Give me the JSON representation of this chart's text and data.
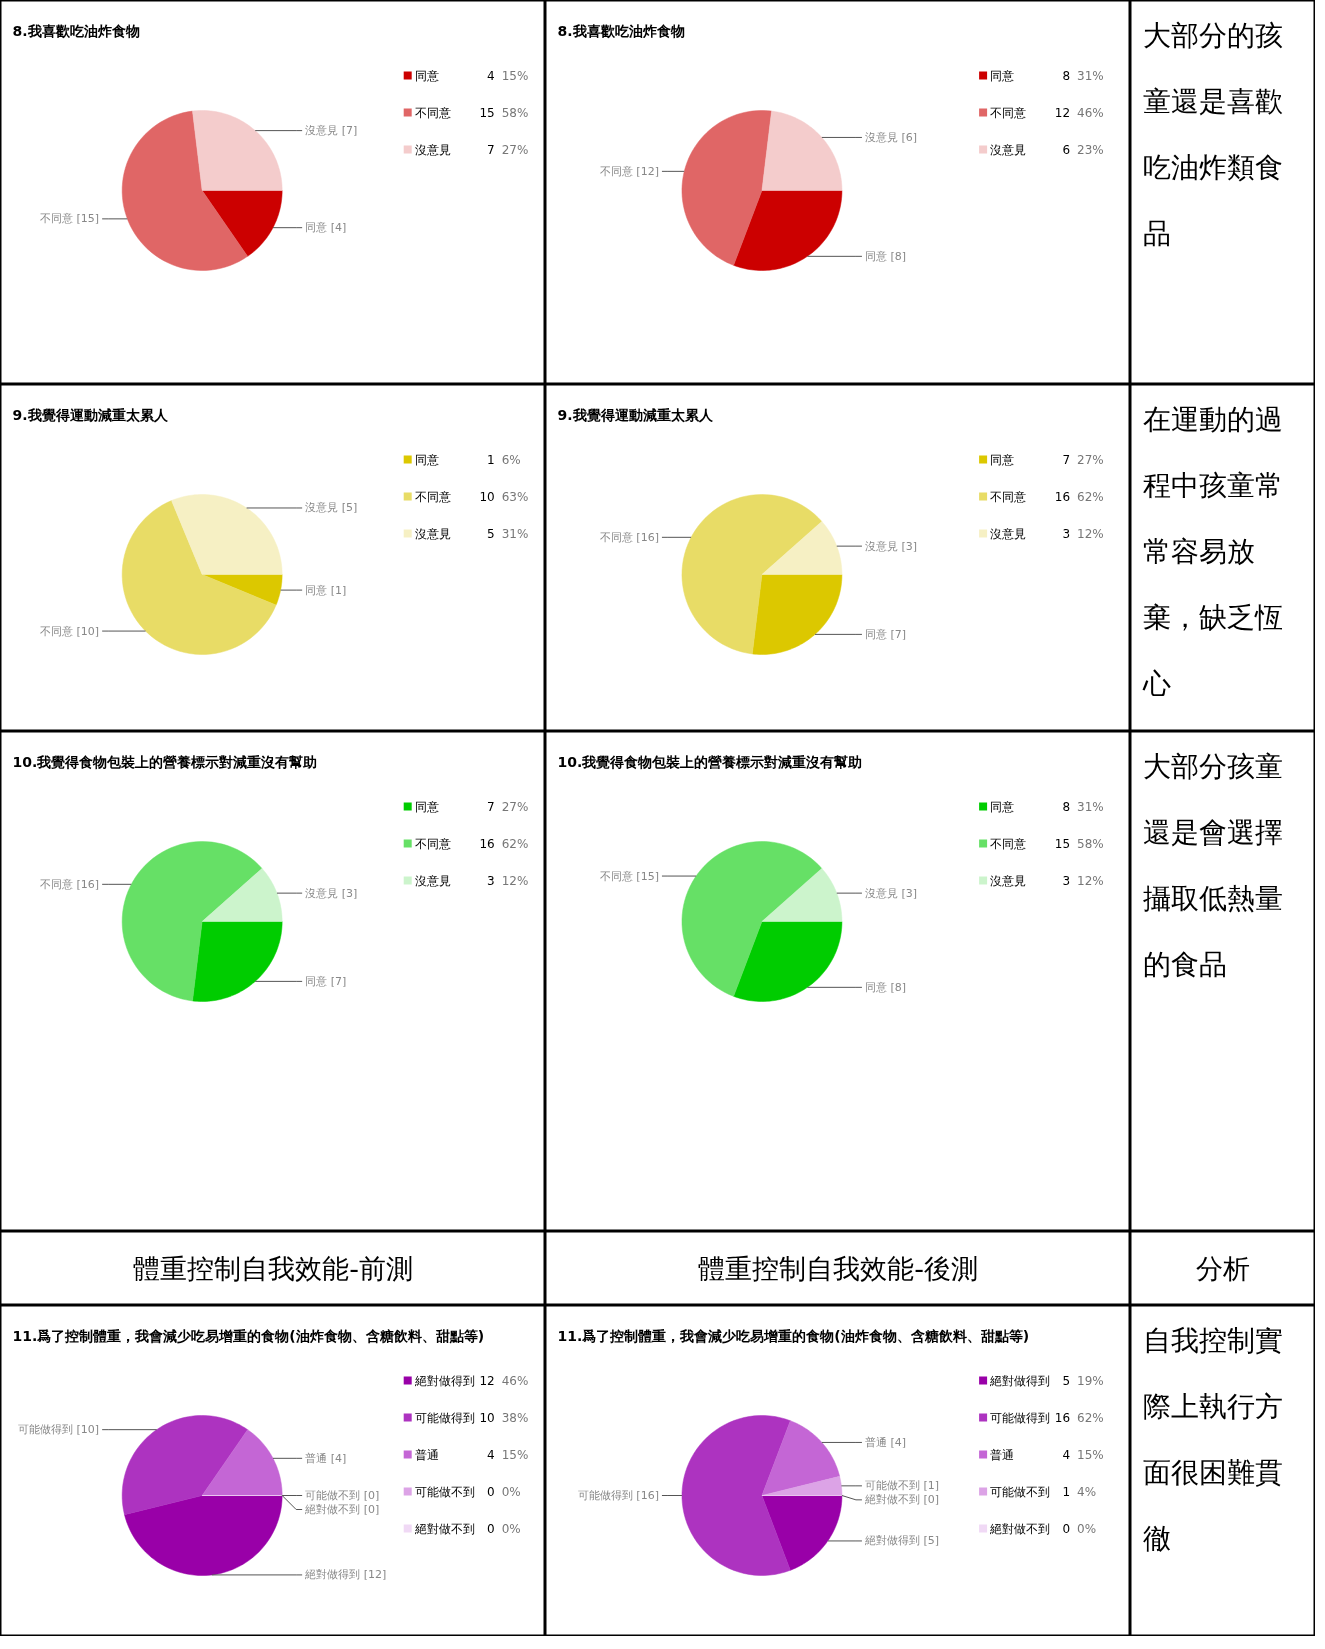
{
  "chart_data": [
    {
      "type": "pie",
      "title": "8.我喜歡吃油炸食物",
      "categories": [
        "同意",
        "不同意",
        "沒意見"
      ],
      "values": [
        4,
        15,
        7
      ],
      "colors": [
        "#cc0000",
        "#e06666",
        "#f4cccc"
      ],
      "value_labels": [
        "同意 [4]",
        "不同意 [15]",
        "沒意見 [7]"
      ],
      "annotations": [
        "4",
        "15%",
        "15",
        "58%",
        "7",
        "27%"
      ],
      "legend": "right"
    },
    {
      "type": "pie",
      "title": "8.我喜歡吃油炸食物",
      "categories": [
        "同意",
        "不同意",
        "沒意見"
      ],
      "values": [
        8,
        12,
        6
      ],
      "colors": [
        "#cc0000",
        "#e06666",
        "#f4cccc"
      ],
      "value_labels": [
        "同意 [8]",
        "不同意 [12]",
        "沒意見 [6]"
      ],
      "annotations": [
        "8",
        "31%",
        "12",
        "46%",
        "6",
        "23%"
      ],
      "legend": "right"
    },
    {
      "type": "other",
      "title": "大部分的孩童還是喜歡吃油炸類食品"
    },
    {
      "type": "pie",
      "title": "9.我覺得運動減重太累人",
      "categories": [
        "同意",
        "不同意",
        "沒意見"
      ],
      "values": [
        1,
        10,
        5
      ],
      "colors": [
        "#dcc800",
        "#e8dc66",
        "#f6f0c4"
      ],
      "value_labels": [
        "同意 [1]",
        "不同意 [10]",
        "沒意見 [5]"
      ],
      "annotations": [
        "1",
        "6%",
        "10",
        "63%",
        "5",
        "31%"
      ],
      "legend": "right"
    },
    {
      "type": "pie",
      "title": "9.我覺得運動減重太累人",
      "categories": [
        "同意",
        "不同意",
        "沒意見"
      ],
      "values": [
        7,
        16,
        3
      ],
      "colors": [
        "#dcc800",
        "#e8dc66",
        "#f6f0c4"
      ],
      "value_labels": [
        "同意 [7]",
        "不同意 [16]",
        "沒意見 [3]"
      ],
      "annotations": [
        "7",
        "27%",
        "16",
        "62%",
        "3",
        "12%"
      ],
      "legend": "right"
    },
    {
      "type": "other",
      "title": "在運動的過程中孩童常常容易放棄，缺乏恆心"
    },
    {
      "type": "pie",
      "title": "10.我覺得食物包裝上的營養標示對減重沒有幫助",
      "categories": [
        "同意",
        "不同意",
        "沒意見"
      ],
      "values": [
        7,
        16,
        3
      ],
      "colors": [
        "#00cc00",
        "#66e066",
        "#ccf4cc"
      ],
      "value_labels": [
        "同意 [7]",
        "不同意 [16]",
        "沒意見 [3]"
      ],
      "annotations": [
        "7",
        "27%",
        "16",
        "62%",
        "3",
        "12%"
      ],
      "legend": "right"
    },
    {
      "type": "pie",
      "title": "10.我覺得食物包裝上的營養標示對減重沒有幫助",
      "categories": [
        "同意",
        "不同意",
        "沒意見"
      ],
      "values": [
        8,
        15,
        3
      ],
      "colors": [
        "#00cc00",
        "#66e066",
        "#ccf4cc"
      ],
      "value_labels": [
        "同意 [8]",
        "不同意 [15]",
        "沒意見 [3]"
      ],
      "annotations": [
        "8",
        "31%",
        "15",
        "58%",
        "3",
        "12%"
      ],
      "legend": "right"
    },
    {
      "type": "other",
      "title": "大部分孩童還是會選擇攝取低熱量的食品"
    },
    {
      "type": "other",
      "title": "體重控制自我效能-前測"
    },
    {
      "type": "other",
      "title": "體重控制自我效能-後測"
    },
    {
      "type": "other",
      "title": "分析"
    },
    {
      "type": "pie",
      "title": "11.爲了控制體重，我會減少吃易增重的食物(油炸食物、含糖飲料、甜點等)",
      "categories": [
        "絕對做得到",
        "可能做得到",
        "普通",
        "可能做不到",
        "絕對做不到"
      ],
      "values": [
        12,
        10,
        4,
        0,
        0
      ],
      "colors": [
        "#9900a8",
        "#ad33c0",
        "#c466d5",
        "#dca3e6",
        "#f0d9f5"
      ],
      "value_labels": [
        "絕對做得到 [12]",
        "可能做得到 [10]",
        "普通 [4]",
        "可能做不到 [0]",
        "絕對做不到 [0]"
      ],
      "annotations": [
        "12",
        "46%",
        "10",
        "38%",
        "4",
        "15%",
        "0",
        "0%",
        "0",
        "0%"
      ],
      "legend": "right"
    },
    {
      "type": "pie",
      "title": "11.爲了控制體重，我會減少吃易增重的食物(油炸食物、含糖飲料、甜點等)",
      "categories": [
        "絕對做得到",
        "可能做得到",
        "普通",
        "可能做不到",
        "絕對做不到"
      ],
      "values": [
        5,
        16,
        4,
        1,
        0
      ],
      "colors": [
        "#9900a8",
        "#ad33c0",
        "#c466d5",
        "#dca3e6",
        "#f0d9f5"
      ],
      "value_labels": [
        "絕對做得到 [5]",
        "可能做得到 [16]",
        "普通 [4]",
        "可能做不到 [1]",
        "絕對做不到 [0]"
      ],
      "annotations": [
        "5",
        "19%",
        "16",
        "62%",
        "4",
        "15%",
        "1",
        "4%",
        "0",
        "0%"
      ],
      "legend": "right"
    },
    {
      "type": "other",
      "title": "自我控制實際上執行方面很困難貫徹"
    }
  ]
}
